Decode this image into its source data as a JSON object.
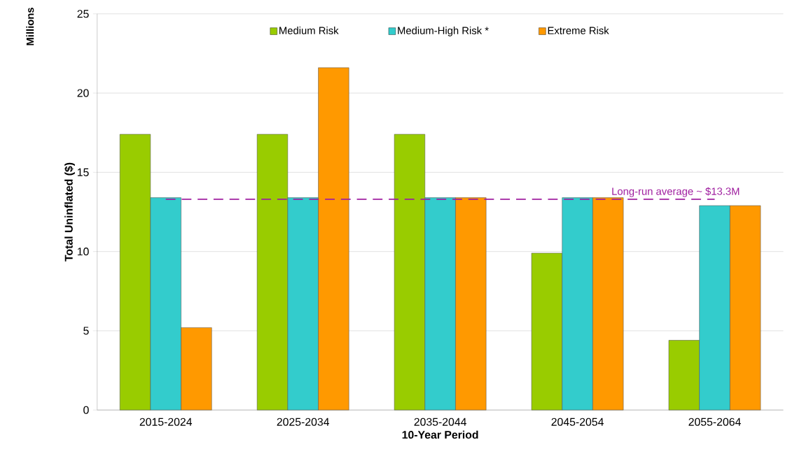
{
  "chart_data": {
    "type": "bar",
    "xlabel": "10-Year Period",
    "ylabel": "Total Uninflated ($)",
    "annotations": [
      "Millions"
    ],
    "categories": [
      "2015-2024",
      "2025-2034",
      "2035-2044",
      "2045-2054",
      "2055-2064"
    ],
    "series": [
      {
        "name": "Medium Risk",
        "color": "#99cc00",
        "values": [
          17.4,
          17.4,
          17.4,
          9.9,
          4.4
        ]
      },
      {
        "name": "Medium-High Risk *",
        "color": "#33cccc",
        "values": [
          13.4,
          13.4,
          13.4,
          13.4,
          12.9
        ]
      },
      {
        "name": "Extreme Risk",
        "color": "#ff9900",
        "values": [
          5.2,
          21.6,
          13.4,
          13.4,
          12.9
        ]
      }
    ],
    "ylim": [
      0,
      25
    ],
    "yticks": [
      0,
      5,
      10,
      15,
      20,
      25
    ],
    "grid": "y",
    "legend": "top",
    "ref_lines": [
      {
        "axis": "y",
        "value": 13.3,
        "label": "Long-run average ~ $13.3M",
        "color": "#a020a0",
        "line_style": "dashed"
      }
    ]
  }
}
